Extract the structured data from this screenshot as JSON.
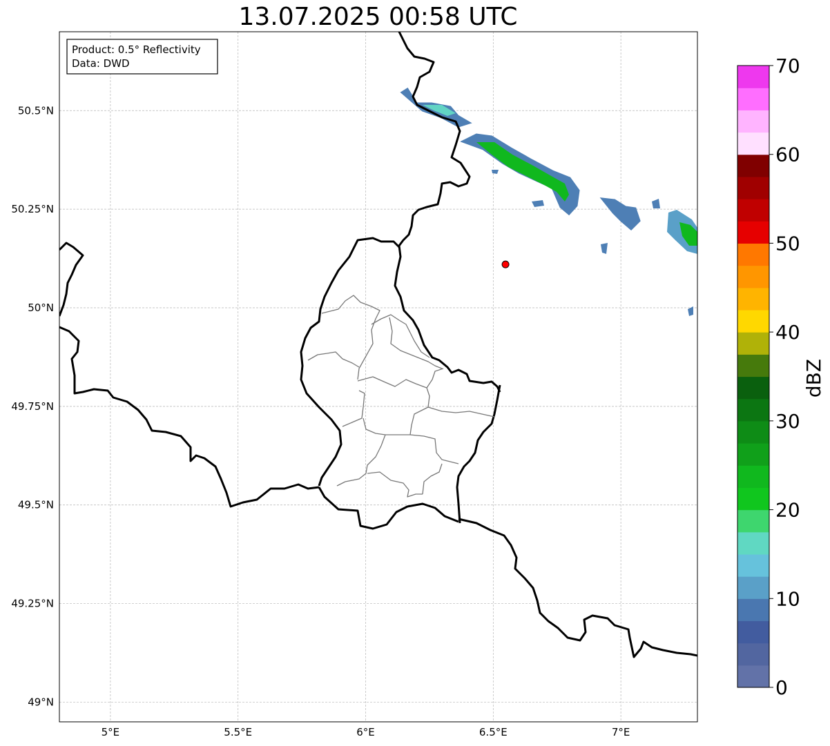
{
  "title": "13.07.2025 00:58 UTC",
  "info_box": {
    "product": "Product: 0.5° Reflectivity",
    "data_source": "Data: DWD"
  },
  "map": {
    "lon_range": [
      4.8,
      7.3
    ],
    "lat_range": [
      48.95,
      50.7
    ],
    "lon_ticks": [
      {
        "value": 5.0,
        "label": "5°E"
      },
      {
        "value": 5.5,
        "label": "5.5°E"
      },
      {
        "value": 6.0,
        "label": "6°E"
      },
      {
        "value": 6.5,
        "label": "6.5°E"
      },
      {
        "value": 7.0,
        "label": "7°E"
      }
    ],
    "lat_ticks": [
      {
        "value": 50.5,
        "label": "50.5°N"
      },
      {
        "value": 50.25,
        "label": "50.25°N"
      },
      {
        "value": 50.0,
        "label": "50°N"
      },
      {
        "value": 49.75,
        "label": "49.75°N"
      },
      {
        "value": 49.5,
        "label": "49.5°N"
      },
      {
        "value": 49.25,
        "label": "49.25°N"
      },
      {
        "value": 49.0,
        "label": "49°N"
      }
    ],
    "gridlines": true,
    "radar_site": {
      "lon": 6.548,
      "lat": 50.11,
      "color": "#ff0000"
    }
  },
  "colorbar": {
    "label": "dBZ",
    "range": [
      0,
      70
    ],
    "step": 2.5,
    "tick_labels": [
      {
        "value": 0,
        "label": "0"
      },
      {
        "value": 10,
        "label": "10"
      },
      {
        "value": 20,
        "label": "20"
      },
      {
        "value": 30,
        "label": "30"
      },
      {
        "value": 40,
        "label": "40"
      },
      {
        "value": 50,
        "label": "50"
      },
      {
        "value": 60,
        "label": "60"
      },
      {
        "value": 70,
        "label": "70"
      }
    ],
    "colors": [
      "#6272a8",
      "#5266a0",
      "#425c9f",
      "#4a77b0",
      "#5aa0c8",
      "#66c2dc",
      "#60d8c2",
      "#3ed66e",
      "#10c61e",
      "#10b81e",
      "#10a01a",
      "#0e8c16",
      "#0c7612",
      "#0a600e",
      "#467a0c",
      "#b0b208",
      "#ffd800",
      "#ffb400",
      "#ff9600",
      "#ff7800",
      "#e60000",
      "#c00000",
      "#a00000",
      "#800000",
      "#ffe0ff",
      "#ffb4ff",
      "#ff6eff",
      "#ee38ee"
    ]
  }
}
